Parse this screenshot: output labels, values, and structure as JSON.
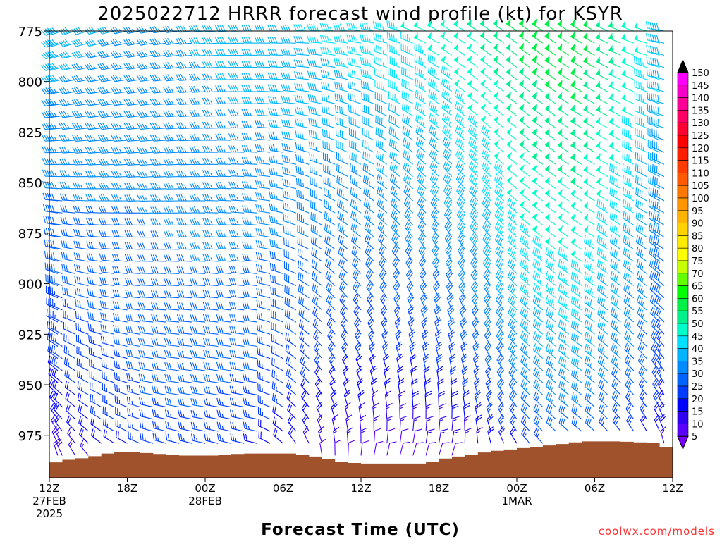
{
  "chart_data": {
    "type": "wind_profile",
    "title": "2025022712 HRRR forecast wind profile (kt) for KSYR",
    "xlabel": "Forecast Time (UTC)",
    "ylabel": "",
    "credit": "coolwx.com/models",
    "x_axis": {
      "start": "2025-02-27T12:00Z",
      "end": "2025-03-01T12:00Z",
      "ticks": [
        {
          "hour": 0,
          "label": "12Z",
          "date": "27FEB",
          "year": "2025"
        },
        {
          "hour": 6,
          "label": "18Z",
          "date": "",
          "year": ""
        },
        {
          "hour": 12,
          "label": "00Z",
          "date": "28FEB",
          "year": ""
        },
        {
          "hour": 18,
          "label": "06Z",
          "date": "",
          "year": ""
        },
        {
          "hour": 24,
          "label": "12Z",
          "date": "",
          "year": ""
        },
        {
          "hour": 30,
          "label": "18Z",
          "date": "",
          "year": ""
        },
        {
          "hour": 36,
          "label": "00Z",
          "date": "1MAR",
          "year": ""
        },
        {
          "hour": 42,
          "label": "06Z",
          "date": "",
          "year": ""
        },
        {
          "hour": 48,
          "label": "12Z",
          "date": "",
          "year": ""
        }
      ]
    },
    "y_axis": {
      "unit": "hPa",
      "range": [
        775,
        996
      ],
      "ticks": [
        775,
        800,
        825,
        850,
        875,
        900,
        925,
        950,
        975
      ]
    },
    "levels": [
      775,
      781,
      787,
      793,
      799,
      805,
      811,
      817,
      823,
      829,
      835,
      841,
      847,
      853,
      859,
      865,
      871,
      877,
      883,
      889,
      895,
      901,
      907,
      913,
      919,
      925,
      931,
      937,
      943,
      949,
      955,
      961,
      967,
      973,
      979,
      985
    ],
    "surface_pressure": [
      {
        "hour": 0,
        "p": 989
      },
      {
        "hour": 1.6,
        "p": 987
      },
      {
        "hour": 3,
        "p": 986
      },
      {
        "hour": 4.5,
        "p": 984
      },
      {
        "hour": 6,
        "p": 983
      },
      {
        "hour": 8,
        "p": 984
      },
      {
        "hour": 10,
        "p": 985
      },
      {
        "hour": 13,
        "p": 985
      },
      {
        "hour": 15,
        "p": 984
      },
      {
        "hour": 19,
        "p": 984
      },
      {
        "hour": 21,
        "p": 986
      },
      {
        "hour": 22.5,
        "p": 988
      },
      {
        "hour": 24,
        "p": 989
      },
      {
        "hour": 29,
        "p": 989
      },
      {
        "hour": 30,
        "p": 987
      },
      {
        "hour": 32,
        "p": 985
      },
      {
        "hour": 34,
        "p": 983
      },
      {
        "hour": 37,
        "p": 981
      },
      {
        "hour": 40,
        "p": 979
      },
      {
        "hour": 41,
        "p": 978
      },
      {
        "hour": 44,
        "p": 978
      },
      {
        "hour": 47,
        "p": 979
      },
      {
        "hour": 48,
        "p": 983
      }
    ],
    "wind_keyframes": [
      {
        "hour": 0,
        "speed_sfc": 10,
        "speed_top": 40,
        "dir_sfc": 350,
        "dir_top": 250
      },
      {
        "hour": 4,
        "speed_sfc": 18,
        "speed_top": 38,
        "dir_sfc": 315,
        "dir_top": 255
      },
      {
        "hour": 8,
        "speed_sfc": 24,
        "speed_top": 36,
        "dir_sfc": 290,
        "dir_top": 260
      },
      {
        "hour": 12,
        "speed_sfc": 24,
        "speed_top": 38,
        "dir_sfc": 285,
        "dir_top": 265
      },
      {
        "hour": 16,
        "speed_sfc": 20,
        "speed_top": 40,
        "dir_sfc": 285,
        "dir_top": 270
      },
      {
        "hour": 19,
        "speed_sfc": 15,
        "speed_top": 42,
        "dir_sfc": 330,
        "dir_top": 270
      },
      {
        "hour": 22,
        "speed_sfc": 9,
        "speed_top": 44,
        "dir_sfc": 5,
        "dir_top": 275
      },
      {
        "hour": 25,
        "speed_sfc": 5,
        "speed_top": 46,
        "dir_sfc": 20,
        "dir_top": 280
      },
      {
        "hour": 28,
        "speed_sfc": 5,
        "speed_top": 48,
        "dir_sfc": 25,
        "dir_top": 290
      },
      {
        "hour": 31,
        "speed_sfc": 8,
        "speed_top": 50,
        "dir_sfc": 20,
        "dir_top": 300
      },
      {
        "hour": 34,
        "speed_sfc": 14,
        "speed_top": 54,
        "dir_sfc": 350,
        "dir_top": 305
      },
      {
        "hour": 37,
        "speed_sfc": 22,
        "speed_top": 60,
        "dir_sfc": 320,
        "dir_top": 305
      },
      {
        "hour": 41,
        "speed_sfc": 26,
        "speed_top": 62,
        "dir_sfc": 310,
        "dir_top": 300
      },
      {
        "hour": 45,
        "speed_sfc": 20,
        "speed_top": 52,
        "dir_sfc": 330,
        "dir_top": 290
      },
      {
        "hour": 48,
        "speed_sfc": 14,
        "speed_top": 42,
        "dir_sfc": 350,
        "dir_top": 280
      }
    ],
    "colorbar": {
      "unit": "kt",
      "labels": [
        150,
        145,
        140,
        135,
        130,
        125,
        120,
        115,
        110,
        105,
        100,
        95,
        90,
        85,
        80,
        75,
        70,
        65,
        60,
        55,
        50,
        45,
        40,
        35,
        30,
        25,
        20,
        15,
        10,
        5
      ],
      "colors": [
        "#ff00ff",
        "#f500c8",
        "#ff0096",
        "#ff0064",
        "#ff0032",
        "#ff0000",
        "#ff1e00",
        "#ff3c00",
        "#ff5a00",
        "#ff7800",
        "#ff9600",
        "#ffb400",
        "#ffd200",
        "#ffeb00",
        "#ffff00",
        "#c8ff00",
        "#64ff00",
        "#00ff00",
        "#00f046",
        "#00f08c",
        "#00ffc8",
        "#00e1ff",
        "#00b4ff",
        "#008cff",
        "#0064ff",
        "#003cff",
        "#0000ff",
        "#3200f0",
        "#5a00ff",
        "#7800ff"
      ]
    },
    "terrain_color": "#a0522d",
    "grid": false,
    "legend_position": "right"
  }
}
